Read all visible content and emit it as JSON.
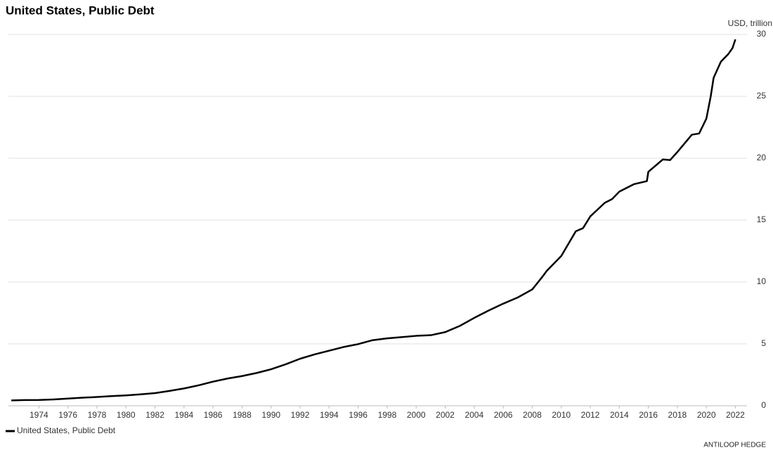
{
  "chart_data": {
    "type": "line",
    "title": "United States, Public Debt",
    "y_axis_label": "USD, trillion",
    "source": "ANTILOOP HEDGE",
    "x": [
      1972.1,
      1973,
      1974,
      1975,
      1976,
      1977,
      1978,
      1979,
      1980,
      1981,
      1982,
      1983,
      1984,
      1985,
      1986,
      1987,
      1988,
      1989,
      1990,
      1991,
      1992,
      1993,
      1994,
      1995,
      1996,
      1997,
      1998,
      1999,
      2000,
      2001,
      2002,
      2003,
      2004,
      2005,
      2006,
      2007,
      2008,
      2008.75,
      2009,
      2010,
      2011,
      2011.5,
      2012,
      2013,
      2013.5,
      2014,
      2015,
      2015.9,
      2016,
      2017,
      2017.5,
      2018,
      2019,
      2019.5,
      2020,
      2020.3,
      2020.5,
      2021,
      2021.5,
      2021.8,
      2022
    ],
    "series": [
      {
        "name": "United States, Public Debt",
        "color": "#000000",
        "values": [
          0.43,
          0.46,
          0.47,
          0.51,
          0.58,
          0.65,
          0.71,
          0.78,
          0.84,
          0.92,
          1.02,
          1.2,
          1.4,
          1.65,
          1.95,
          2.2,
          2.4,
          2.65,
          2.95,
          3.35,
          3.8,
          4.15,
          4.45,
          4.75,
          4.98,
          5.3,
          5.45,
          5.55,
          5.65,
          5.7,
          5.95,
          6.45,
          7.1,
          7.7,
          8.25,
          8.75,
          9.4,
          10.5,
          10.9,
          12.1,
          14.1,
          14.35,
          15.3,
          16.4,
          16.7,
          17.3,
          17.9,
          18.15,
          18.9,
          19.9,
          19.85,
          20.5,
          21.9,
          22.0,
          23.2,
          25.0,
          26.5,
          27.8,
          28.4,
          28.9,
          29.6
        ]
      }
    ],
    "xlim": [
      1971.9,
      2022.8
    ],
    "xticks": [
      1974,
      1976,
      1978,
      1980,
      1982,
      1984,
      1986,
      1988,
      1990,
      1992,
      1994,
      1996,
      1998,
      2000,
      2002,
      2004,
      2006,
      2008,
      2010,
      2012,
      2014,
      2016,
      2018,
      2020,
      2022
    ],
    "ylim": [
      0,
      30
    ],
    "yticks": [
      0,
      5,
      10,
      15,
      20,
      25,
      30
    ],
    "grid": true,
    "legend": "bottom-left"
  }
}
